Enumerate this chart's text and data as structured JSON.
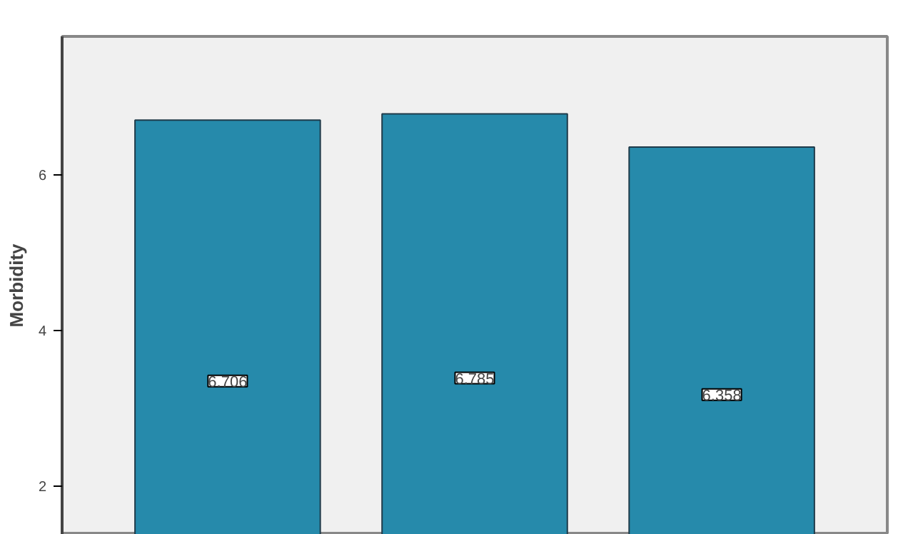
{
  "chart_data": {
    "type": "bar",
    "ylabel": "Morbidity",
    "categories": [
      null,
      null,
      null
    ],
    "values": [
      6.706,
      6.785,
      6.358
    ],
    "color": "#268aab",
    "data_labels": true,
    "ylim": [
      1.38,
      7.78
    ],
    "yticks": [
      2,
      4,
      6
    ],
    "grid": false
  }
}
